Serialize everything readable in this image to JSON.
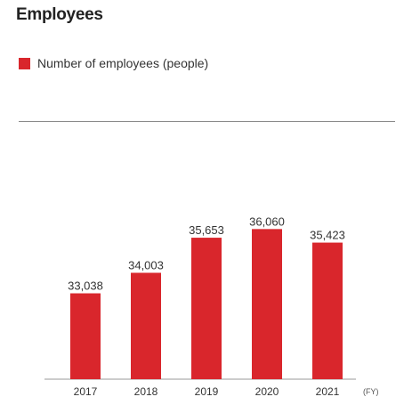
{
  "chart_data": {
    "type": "bar",
    "title": "Employees",
    "legend": [
      "Number of employees (people)"
    ],
    "legend_position": "top-left",
    "categories": [
      "2017",
      "2018",
      "2019",
      "2020",
      "2021"
    ],
    "series": [
      {
        "name": "Number of employees (people)",
        "values": [
          33038,
          34003,
          35653,
          36060,
          35423
        ],
        "labels": [
          "33,038",
          "34,003",
          "35,653",
          "36,060",
          "35,423"
        ],
        "color": "#d9262c"
      }
    ],
    "xlabel_unit": "(FY)",
    "ylim": [
      0,
      38000
    ],
    "grid": false
  }
}
